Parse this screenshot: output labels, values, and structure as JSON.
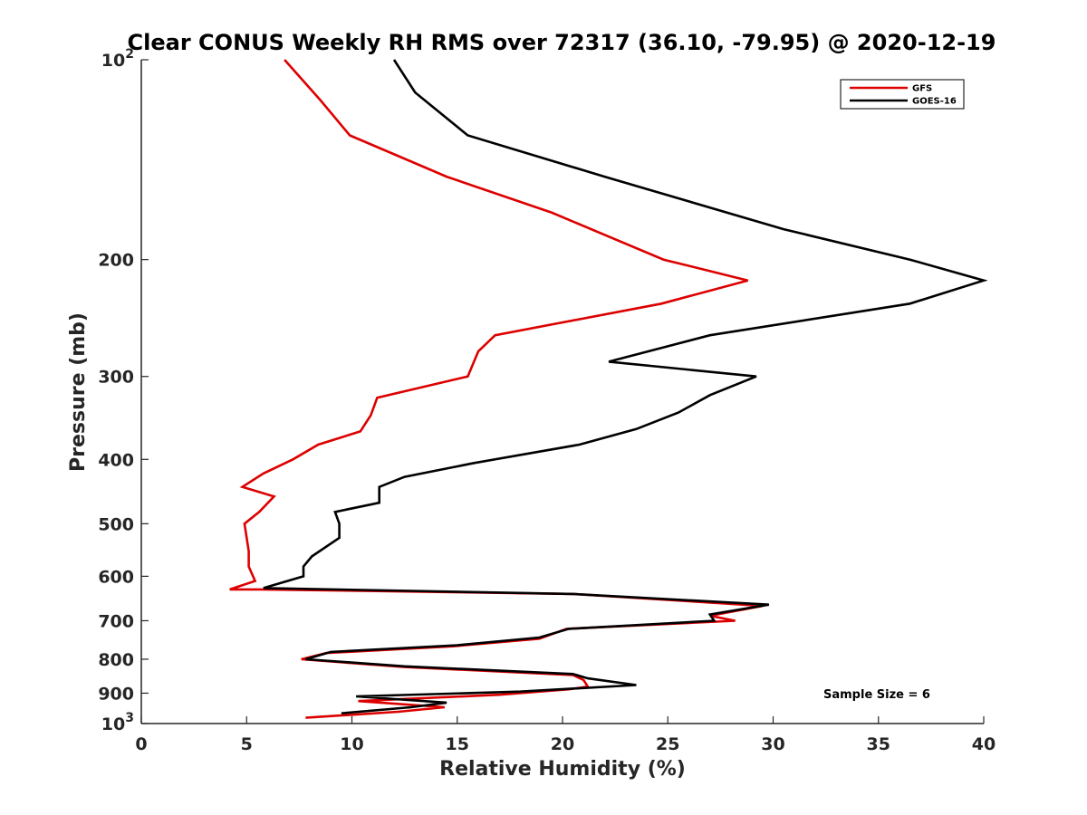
{
  "chart_data": {
    "type": "line",
    "title": "Clear CONUS Weekly RH RMS over 72317 (36.10, -79.95) @ 2020-12-19",
    "xlabel": "Relative Humidity (%)",
    "ylabel": "Pressure (mb)",
    "xlim": [
      0,
      40
    ],
    "ylim": [
      100,
      1000
    ],
    "yscale": "log",
    "yreversed": true,
    "grid": false,
    "legend_position": "top-right",
    "x_ticks": [
      0,
      5,
      10,
      15,
      20,
      25,
      30,
      35,
      40
    ],
    "y_ticks": [
      {
        "value": 100,
        "label": "10",
        "exponent": "2"
      },
      {
        "value": 200,
        "label": "200"
      },
      {
        "value": 300,
        "label": "300"
      },
      {
        "value": 400,
        "label": "400"
      },
      {
        "value": 500,
        "label": "500"
      },
      {
        "value": 600,
        "label": "600"
      },
      {
        "value": 700,
        "label": "700"
      },
      {
        "value": 800,
        "label": "800"
      },
      {
        "value": 900,
        "label": "900"
      },
      {
        "value": 1000,
        "label": "10",
        "exponent": "3"
      }
    ],
    "series": [
      {
        "name": "GFS",
        "color": "#dd0000",
        "points": [
          [
            6.8,
            100
          ],
          [
            8.5,
            115
          ],
          [
            9.9,
            130
          ],
          [
            14.5,
            150
          ],
          [
            19.5,
            170
          ],
          [
            21,
            178
          ],
          [
            24.8,
            200
          ],
          [
            28.8,
            215
          ],
          [
            24.7,
            233
          ],
          [
            16.8,
            260
          ],
          [
            16,
            275
          ],
          [
            15.5,
            300
          ],
          [
            11.2,
            323
          ],
          [
            10.9,
            343
          ],
          [
            10.4,
            363
          ],
          [
            8.4,
            380
          ],
          [
            7.2,
            400
          ],
          [
            5.8,
            420
          ],
          [
            4.8,
            440
          ],
          [
            6.3,
            455
          ],
          [
            5.6,
            480
          ],
          [
            4.9,
            500
          ],
          [
            5.1,
            550
          ],
          [
            5.1,
            580
          ],
          [
            5.4,
            610
          ],
          [
            4.2,
            628
          ],
          [
            5.7,
            628
          ],
          [
            20.5,
            638
          ],
          [
            29.5,
            665
          ],
          [
            27,
            688
          ],
          [
            28.2,
            700
          ],
          [
            20.2,
            720
          ],
          [
            18.9,
            745
          ],
          [
            14.8,
            765
          ],
          [
            8.8,
            783
          ],
          [
            7.6,
            800
          ],
          [
            12.5,
            822
          ],
          [
            20.5,
            845
          ],
          [
            21,
            860
          ],
          [
            21.2,
            880
          ],
          [
            20.3,
            888
          ],
          [
            17,
            905
          ],
          [
            10.3,
            925
          ],
          [
            14.4,
            945
          ],
          [
            12.2,
            960
          ],
          [
            7.8,
            980
          ]
        ]
      },
      {
        "name": "GOES-16",
        "color": "#000000",
        "points": [
          [
            12,
            100
          ],
          [
            13,
            112
          ],
          [
            15.5,
            130
          ],
          [
            22,
            150
          ],
          [
            30.5,
            180
          ],
          [
            36.5,
            200
          ],
          [
            40,
            215
          ],
          [
            36.5,
            233
          ],
          [
            27,
            260
          ],
          [
            22.2,
            285
          ],
          [
            29.2,
            300
          ],
          [
            27,
            320
          ],
          [
            25.5,
            340
          ],
          [
            23.5,
            360
          ],
          [
            20.8,
            380
          ],
          [
            15.8,
            405
          ],
          [
            12.5,
            425
          ],
          [
            11.3,
            440
          ],
          [
            11.3,
            465
          ],
          [
            9.2,
            480
          ],
          [
            9.4,
            500
          ],
          [
            9.4,
            525
          ],
          [
            8.1,
            560
          ],
          [
            7.7,
            580
          ],
          [
            7.7,
            600
          ],
          [
            5.8,
            625
          ],
          [
            20.5,
            638
          ],
          [
            29.8,
            662
          ],
          [
            27,
            685
          ],
          [
            27.2,
            700
          ],
          [
            20.3,
            720
          ],
          [
            18.9,
            742
          ],
          [
            15,
            762
          ],
          [
            9,
            780
          ],
          [
            7.8,
            800
          ],
          [
            12.5,
            820
          ],
          [
            20.5,
            842
          ],
          [
            21.2,
            855
          ],
          [
            23.5,
            875
          ],
          [
            18,
            895
          ],
          [
            10.2,
            910
          ],
          [
            14.5,
            930
          ],
          [
            12.8,
            945
          ],
          [
            9.5,
            965
          ]
        ]
      }
    ],
    "annotation": "Sample Size = 6"
  }
}
